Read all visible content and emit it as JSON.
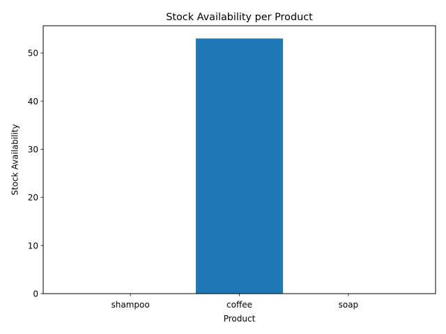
{
  "chart_data": {
    "type": "bar",
    "title": "Stock Availability per Product",
    "xlabel": "Product",
    "ylabel": "Stock Availability",
    "categories": [
      "shampoo",
      "coffee",
      "soap"
    ],
    "values": [
      0,
      53,
      0
    ],
    "ylim": [
      0,
      55.65
    ],
    "yticks": [
      0,
      10,
      20,
      30,
      40,
      50
    ],
    "bar_color": "#1f77b4",
    "grid": false,
    "legend": "none"
  }
}
